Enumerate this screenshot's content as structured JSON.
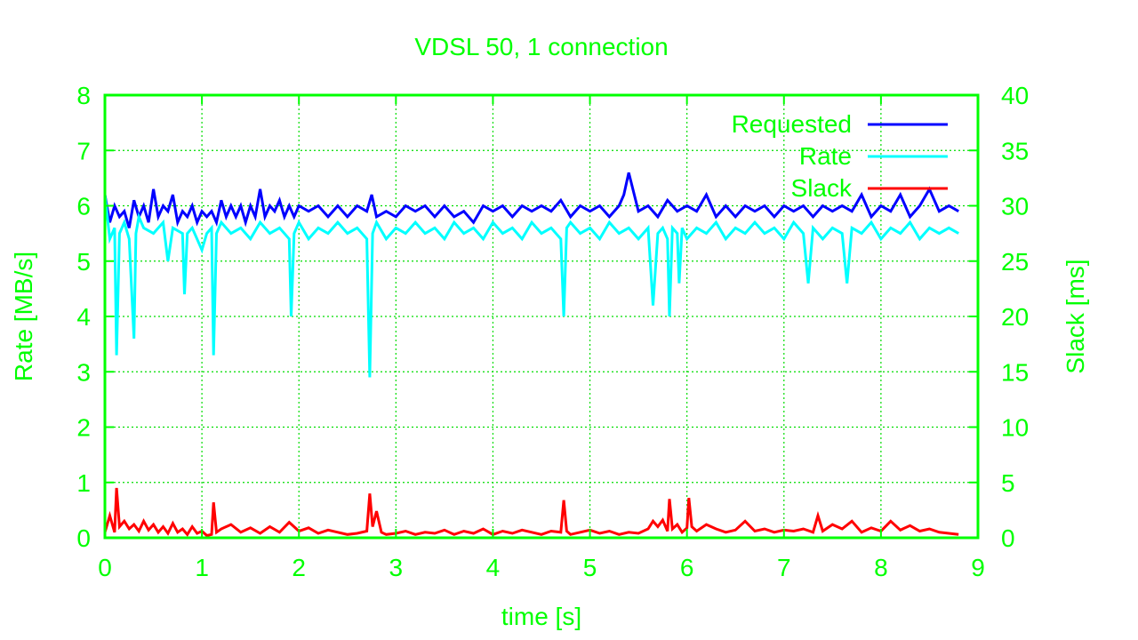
{
  "colors": {
    "axis": "#00ff00",
    "grid": "#00dd00",
    "requested": "#0000ff",
    "rate": "#00ffff",
    "slack": "#ff0000",
    "background": "#ffffff"
  },
  "chart_data": {
    "type": "line",
    "title": "VDSL 50, 1 connection",
    "xlabel": "time [s]",
    "ylabel": "Rate [MB/s]",
    "y2label": "Slack [ms]",
    "xlim": [
      0,
      9
    ],
    "ylim": [
      0,
      8
    ],
    "y2lim": [
      0,
      40
    ],
    "xticks": [
      "0",
      "1",
      "2",
      "3",
      "4",
      "5",
      "6",
      "7",
      "8",
      "9"
    ],
    "yticks": [
      "0",
      "1",
      "2",
      "3",
      "4",
      "5",
      "6",
      "7",
      "8"
    ],
    "y2ticks": [
      "0",
      "5",
      "10",
      "15",
      "20",
      "25",
      "30",
      "35",
      "40"
    ],
    "grid": true,
    "legend_position": "top-right",
    "series": [
      {
        "name": "Requested",
        "axis": "y",
        "x": [
          0.0,
          0.05,
          0.1,
          0.15,
          0.2,
          0.25,
          0.3,
          0.35,
          0.4,
          0.45,
          0.5,
          0.55,
          0.6,
          0.65,
          0.7,
          0.75,
          0.8,
          0.85,
          0.9,
          0.95,
          1.0,
          1.05,
          1.1,
          1.15,
          1.2,
          1.25,
          1.3,
          1.35,
          1.4,
          1.45,
          1.5,
          1.55,
          1.6,
          1.65,
          1.7,
          1.75,
          1.8,
          1.85,
          1.9,
          1.95,
          2.0,
          2.1,
          2.2,
          2.3,
          2.4,
          2.5,
          2.6,
          2.7,
          2.75,
          2.8,
          2.9,
          3.0,
          3.1,
          3.2,
          3.3,
          3.4,
          3.5,
          3.6,
          3.7,
          3.8,
          3.9,
          4.0,
          4.1,
          4.2,
          4.3,
          4.4,
          4.5,
          4.6,
          4.7,
          4.8,
          4.9,
          5.0,
          5.1,
          5.2,
          5.3,
          5.35,
          5.4,
          5.5,
          5.6,
          5.7,
          5.8,
          5.9,
          6.0,
          6.1,
          6.2,
          6.3,
          6.4,
          6.5,
          6.6,
          6.7,
          6.8,
          6.9,
          7.0,
          7.1,
          7.2,
          7.3,
          7.4,
          7.5,
          7.6,
          7.7,
          7.8,
          7.9,
          8.0,
          8.1,
          8.2,
          8.3,
          8.4,
          8.5,
          8.6,
          8.7,
          8.8
        ],
        "values": [
          6.2,
          5.7,
          6.0,
          5.8,
          5.9,
          5.6,
          6.1,
          5.8,
          6.0,
          5.7,
          6.3,
          5.8,
          6.0,
          5.9,
          6.2,
          5.7,
          5.9,
          5.8,
          6.0,
          5.7,
          5.9,
          5.8,
          5.9,
          5.7,
          6.1,
          5.8,
          6.0,
          5.8,
          6.0,
          5.7,
          6.0,
          5.8,
          6.3,
          5.8,
          6.0,
          5.9,
          6.1,
          5.8,
          6.0,
          5.8,
          6.0,
          5.9,
          6.0,
          5.8,
          6.0,
          5.8,
          6.0,
          5.9,
          6.2,
          5.8,
          5.9,
          5.8,
          6.0,
          5.9,
          6.0,
          5.8,
          6.0,
          5.8,
          5.9,
          5.7,
          6.0,
          5.9,
          6.0,
          5.8,
          6.0,
          5.9,
          6.0,
          5.9,
          6.1,
          5.8,
          6.0,
          5.9,
          6.0,
          5.8,
          6.0,
          6.2,
          6.6,
          5.9,
          6.0,
          5.8,
          6.1,
          5.9,
          6.0,
          5.9,
          6.2,
          5.8,
          6.0,
          5.8,
          6.0,
          5.9,
          6.0,
          5.8,
          6.0,
          5.9,
          6.0,
          5.8,
          6.0,
          5.9,
          6.0,
          5.9,
          6.2,
          5.8,
          6.0,
          5.9,
          6.2,
          5.8,
          6.0,
          6.3,
          5.9,
          6.0,
          5.9
        ]
      },
      {
        "name": "Rate",
        "axis": "y",
        "x": [
          0.0,
          0.05,
          0.1,
          0.12,
          0.15,
          0.2,
          0.25,
          0.3,
          0.32,
          0.35,
          0.4,
          0.5,
          0.6,
          0.65,
          0.7,
          0.8,
          0.82,
          0.85,
          0.9,
          1.0,
          1.05,
          1.1,
          1.12,
          1.15,
          1.2,
          1.3,
          1.4,
          1.5,
          1.6,
          1.7,
          1.8,
          1.9,
          1.92,
          1.95,
          2.0,
          2.1,
          2.2,
          2.3,
          2.4,
          2.5,
          2.6,
          2.7,
          2.73,
          2.76,
          2.8,
          2.9,
          3.0,
          3.1,
          3.2,
          3.3,
          3.4,
          3.5,
          3.6,
          3.7,
          3.8,
          3.9,
          4.0,
          4.1,
          4.2,
          4.3,
          4.4,
          4.5,
          4.6,
          4.7,
          4.73,
          4.76,
          4.8,
          4.9,
          5.0,
          5.1,
          5.2,
          5.3,
          5.4,
          5.5,
          5.6,
          5.65,
          5.7,
          5.75,
          5.8,
          5.82,
          5.85,
          5.9,
          5.92,
          5.95,
          6.0,
          6.1,
          6.2,
          6.3,
          6.4,
          6.5,
          6.6,
          6.7,
          6.8,
          6.9,
          7.0,
          7.1,
          7.2,
          7.25,
          7.3,
          7.4,
          7.5,
          7.6,
          7.65,
          7.7,
          7.8,
          7.9,
          8.0,
          8.1,
          8.2,
          8.3,
          8.4,
          8.5,
          8.6,
          8.7,
          8.8
        ],
        "values": [
          6.2,
          5.4,
          5.6,
          3.3,
          5.5,
          5.7,
          5.4,
          3.6,
          5.5,
          5.8,
          5.6,
          5.5,
          5.7,
          5.0,
          5.6,
          5.5,
          4.4,
          5.5,
          5.6,
          5.2,
          5.5,
          5.6,
          3.3,
          5.5,
          5.7,
          5.5,
          5.6,
          5.4,
          5.7,
          5.5,
          5.6,
          5.4,
          4.0,
          5.5,
          5.7,
          5.4,
          5.6,
          5.5,
          5.7,
          5.5,
          5.6,
          5.4,
          2.9,
          5.5,
          5.7,
          5.4,
          5.6,
          5.5,
          5.7,
          5.5,
          5.6,
          5.4,
          5.7,
          5.5,
          5.6,
          5.4,
          5.7,
          5.5,
          5.6,
          5.4,
          5.7,
          5.5,
          5.6,
          5.4,
          4.0,
          5.6,
          5.7,
          5.5,
          5.6,
          5.4,
          5.7,
          5.5,
          5.6,
          5.4,
          5.6,
          4.2,
          5.5,
          5.6,
          5.4,
          4.0,
          5.6,
          5.5,
          4.6,
          5.6,
          5.4,
          5.6,
          5.5,
          5.7,
          5.4,
          5.6,
          5.5,
          5.7,
          5.5,
          5.6,
          5.4,
          5.7,
          5.5,
          4.6,
          5.6,
          5.4,
          5.6,
          5.5,
          4.6,
          5.6,
          5.5,
          5.7,
          5.4,
          5.6,
          5.5,
          5.7,
          5.4,
          5.6,
          5.5,
          5.6,
          5.5
        ]
      },
      {
        "name": "Slack",
        "axis": "y2",
        "x": [
          0.0,
          0.05,
          0.1,
          0.12,
          0.15,
          0.2,
          0.25,
          0.3,
          0.35,
          0.4,
          0.45,
          0.5,
          0.55,
          0.6,
          0.65,
          0.7,
          0.75,
          0.8,
          0.85,
          0.9,
          0.95,
          1.0,
          1.05,
          1.1,
          1.12,
          1.15,
          1.2,
          1.3,
          1.4,
          1.5,
          1.6,
          1.7,
          1.8,
          1.9,
          2.0,
          2.1,
          2.2,
          2.3,
          2.4,
          2.5,
          2.6,
          2.7,
          2.73,
          2.76,
          2.8,
          2.85,
          2.9,
          3.0,
          3.1,
          3.2,
          3.3,
          3.4,
          3.5,
          3.6,
          3.7,
          3.8,
          3.9,
          4.0,
          4.1,
          4.2,
          4.3,
          4.4,
          4.5,
          4.6,
          4.7,
          4.73,
          4.76,
          4.8,
          4.9,
          5.0,
          5.1,
          5.2,
          5.3,
          5.4,
          5.5,
          5.6,
          5.65,
          5.7,
          5.75,
          5.8,
          5.82,
          5.85,
          5.9,
          5.95,
          6.0,
          6.02,
          6.05,
          6.1,
          6.2,
          6.3,
          6.4,
          6.5,
          6.6,
          6.7,
          6.8,
          6.9,
          7.0,
          7.1,
          7.2,
          7.3,
          7.35,
          7.4,
          7.5,
          7.6,
          7.7,
          7.8,
          7.9,
          8.0,
          8.1,
          8.2,
          8.3,
          8.4,
          8.5,
          8.6,
          8.7,
          8.8
        ],
        "values": [
          0.5,
          2.0,
          0.5,
          4.5,
          1.0,
          1.5,
          0.8,
          1.2,
          0.6,
          1.5,
          0.7,
          1.2,
          0.5,
          1.0,
          0.4,
          1.3,
          0.5,
          0.8,
          0.3,
          1.0,
          0.4,
          0.6,
          0.2,
          0.3,
          3.2,
          0.5,
          0.8,
          1.2,
          0.5,
          0.9,
          0.4,
          1.0,
          0.5,
          1.4,
          0.6,
          0.9,
          0.4,
          0.7,
          0.5,
          0.3,
          0.4,
          0.6,
          4.0,
          1.0,
          2.4,
          0.5,
          0.3,
          0.4,
          0.6,
          0.3,
          0.5,
          0.4,
          0.7,
          0.3,
          0.6,
          0.4,
          0.8,
          0.3,
          0.6,
          0.4,
          0.7,
          0.5,
          0.3,
          0.6,
          0.5,
          3.4,
          0.6,
          0.3,
          0.5,
          0.7,
          0.4,
          0.6,
          0.3,
          0.5,
          0.4,
          0.8,
          1.5,
          1.0,
          1.6,
          0.6,
          3.5,
          0.8,
          1.2,
          0.5,
          0.9,
          3.6,
          1.0,
          0.6,
          1.2,
          0.8,
          0.5,
          0.7,
          1.5,
          0.6,
          0.8,
          0.5,
          0.7,
          0.6,
          0.8,
          0.5,
          2.0,
          0.6,
          1.2,
          0.8,
          1.5,
          0.5,
          0.9,
          0.6,
          1.5,
          0.7,
          1.1,
          0.6,
          0.8,
          0.5,
          0.4,
          0.3
        ]
      }
    ]
  }
}
